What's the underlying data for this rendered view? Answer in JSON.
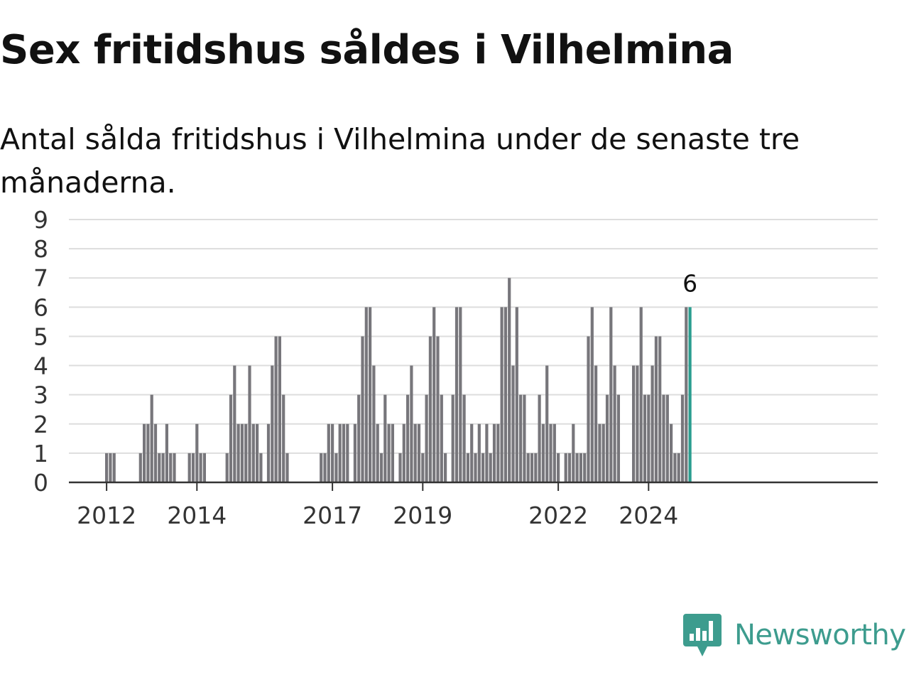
{
  "page": {
    "title": "Sex fritidshus såldes i Vilhelmina",
    "subtitle": "Antal sålda fritidshus i Vilhelmina under de senaste tre månaderna.",
    "brand": "Newsworthy"
  },
  "colors": {
    "bar": "#77767b",
    "highlight": "#2a9d8f",
    "grid": "#dddddd",
    "axis": "#333333",
    "brand": "#3d9c8e"
  },
  "chart_data": {
    "type": "bar",
    "title": "Sex fritidshus såldes i Vilhelmina",
    "subtitle": "Antal sålda fritidshus i Vilhelmina under de senaste tre månaderna.",
    "xlabel": "",
    "ylabel": "",
    "ylim": [
      0,
      9
    ],
    "yticks": [
      0,
      1,
      2,
      3,
      4,
      5,
      6,
      7,
      8,
      9
    ],
    "x_tick_labels": [
      {
        "label": "2012",
        "index": 0
      },
      {
        "label": "2014",
        "index": 24
      },
      {
        "label": "2017",
        "index": 60
      },
      {
        "label": "2019",
        "index": 84
      },
      {
        "label": "2022",
        "index": 120
      },
      {
        "label": "2024",
        "index": 144
      }
    ],
    "grid": true,
    "legend": "none",
    "series": [
      {
        "values": [
          1,
          1,
          1,
          0,
          0,
          0,
          0,
          0,
          0,
          1,
          2,
          2,
          3,
          2,
          1,
          1,
          2,
          1,
          1,
          0,
          0,
          0,
          1,
          1,
          2,
          1,
          1,
          0,
          0,
          0,
          0,
          0,
          1,
          3,
          4,
          2,
          2,
          2,
          4,
          2,
          2,
          1,
          0,
          2,
          4,
          5,
          5,
          3,
          1,
          0,
          0,
          0,
          0,
          0,
          0,
          0,
          0,
          1,
          1,
          2,
          2,
          1,
          2,
          2,
          2,
          0,
          2,
          3,
          5,
          6,
          6,
          4,
          2,
          1,
          3,
          2,
          2,
          0,
          1,
          2,
          3,
          4,
          2,
          2,
          1,
          3,
          5,
          6,
          5,
          3,
          1,
          0,
          3,
          6,
          6,
          3,
          1,
          2,
          1,
          2,
          1,
          2,
          1,
          2,
          2,
          6,
          6,
          7,
          4,
          6,
          3,
          3,
          1,
          1,
          1,
          3,
          2,
          4,
          2,
          2,
          1,
          0,
          1,
          1,
          2,
          1,
          1,
          1,
          5,
          6,
          4,
          2,
          2,
          3,
          6,
          4,
          3,
          0,
          0,
          0,
          4,
          4,
          6,
          3,
          3,
          4,
          5,
          5,
          3,
          3,
          2,
          1,
          1,
          3,
          6,
          6
        ]
      }
    ],
    "highlight": {
      "index": 155,
      "value": 6,
      "label": "6"
    }
  }
}
